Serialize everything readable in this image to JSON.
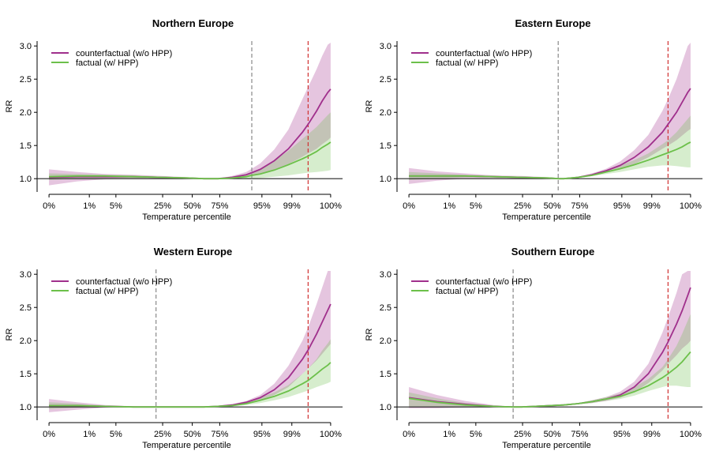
{
  "chart_data": [
    {
      "type": "line",
      "title": "Northern Europe",
      "xlabel": "Temperature percentile",
      "ylabel": "RR",
      "ylim": [
        0.8,
        3.05
      ],
      "yticks": [
        "1.0",
        "1.5",
        "2.0",
        "2.5",
        "3.0"
      ],
      "xticks": [
        "0%",
        "1%",
        "5%",
        "25%",
        "50%",
        "75%",
        "95%",
        "99%",
        "100%"
      ],
      "x": [
        0,
        10,
        20,
        30,
        40,
        50,
        55,
        60,
        65,
        70,
        72,
        75,
        80,
        85,
        90,
        92,
        95,
        97,
        99,
        100
      ],
      "series": [
        {
          "name": "counterfactual (w/o HPP)",
          "color": "#a0308c",
          "values": [
            1.02,
            1.03,
            1.03,
            1.03,
            1.02,
            1.01,
            1.0,
            1.0,
            1.02,
            1.06,
            1.09,
            1.14,
            1.27,
            1.45,
            1.7,
            1.82,
            2.02,
            2.17,
            2.3,
            2.35
          ],
          "lower": [
            0.9,
            0.96,
            0.99,
            1.0,
            1.0,
            1.0,
            1.0,
            1.0,
            1.0,
            1.03,
            1.04,
            1.07,
            1.14,
            1.22,
            1.33,
            1.38,
            1.45,
            1.52,
            1.58,
            1.62
          ],
          "upper": [
            1.14,
            1.1,
            1.07,
            1.06,
            1.04,
            1.02,
            1.0,
            1.0,
            1.04,
            1.1,
            1.15,
            1.23,
            1.44,
            1.74,
            2.2,
            2.38,
            2.65,
            2.85,
            3.02,
            3.05
          ]
        },
        {
          "name": "factual (w/ HPP)",
          "color": "#6cc04a",
          "values": [
            1.03,
            1.04,
            1.04,
            1.03,
            1.02,
            1.01,
            1.0,
            1.0,
            1.01,
            1.03,
            1.05,
            1.07,
            1.13,
            1.21,
            1.3,
            1.34,
            1.41,
            1.47,
            1.52,
            1.55
          ],
          "lower": [
            0.98,
            1.0,
            1.01,
            1.01,
            1.01,
            1.0,
            1.0,
            1.0,
            1.0,
            1.0,
            1.0,
            1.01,
            1.03,
            1.05,
            1.08,
            1.09,
            1.1,
            1.11,
            1.12,
            1.13
          ],
          "upper": [
            1.08,
            1.07,
            1.06,
            1.05,
            1.03,
            1.02,
            1.0,
            1.0,
            1.03,
            1.07,
            1.1,
            1.14,
            1.27,
            1.42,
            1.6,
            1.67,
            1.78,
            1.87,
            1.96,
            2.0
          ]
        }
      ],
      "vlines": [
        {
          "x": 72,
          "color": "#888888"
        },
        {
          "x": 92,
          "color": "#d03030"
        }
      ],
      "hline": 1.0,
      "legend": "top-left"
    },
    {
      "type": "line",
      "title": "Eastern Europe",
      "xlabel": "Temperature percentile",
      "ylabel": "RR",
      "ylim": [
        0.8,
        3.05
      ],
      "yticks": [
        "1.0",
        "1.5",
        "2.0",
        "2.5",
        "3.0"
      ],
      "xticks": [
        "0%",
        "1%",
        "5%",
        "25%",
        "50%",
        "75%",
        "95%",
        "99%",
        "100%"
      ],
      "x": [
        0,
        10,
        20,
        30,
        40,
        50,
        53,
        55,
        60,
        65,
        70,
        75,
        80,
        85,
        90,
        92,
        95,
        97,
        99,
        100
      ],
      "series": [
        {
          "name": "counterfactual (w/o HPP)",
          "color": "#a0308c",
          "values": [
            1.04,
            1.04,
            1.04,
            1.03,
            1.02,
            1.01,
            1.0,
            1.0,
            1.02,
            1.06,
            1.12,
            1.2,
            1.32,
            1.48,
            1.7,
            1.82,
            2.0,
            2.15,
            2.3,
            2.36
          ],
          "lower": [
            0.92,
            0.97,
            1.0,
            1.01,
            1.0,
            1.0,
            1.0,
            1.0,
            1.01,
            1.04,
            1.09,
            1.14,
            1.22,
            1.32,
            1.45,
            1.5,
            1.58,
            1.65,
            1.72,
            1.75
          ],
          "upper": [
            1.16,
            1.11,
            1.08,
            1.05,
            1.04,
            1.02,
            1.0,
            1.0,
            1.03,
            1.08,
            1.15,
            1.26,
            1.43,
            1.66,
            2.02,
            2.2,
            2.5,
            2.75,
            3.0,
            3.05
          ]
        },
        {
          "name": "factual (w/ HPP)",
          "color": "#6cc04a",
          "values": [
            1.04,
            1.04,
            1.04,
            1.03,
            1.02,
            1.01,
            1.0,
            1.0,
            1.02,
            1.05,
            1.1,
            1.15,
            1.21,
            1.28,
            1.36,
            1.39,
            1.44,
            1.48,
            1.53,
            1.55
          ],
          "lower": [
            0.98,
            1.0,
            1.02,
            1.02,
            1.01,
            1.0,
            1.0,
            1.0,
            1.01,
            1.04,
            1.07,
            1.1,
            1.14,
            1.18,
            1.2,
            1.2,
            1.19,
            1.18,
            1.17,
            1.17
          ],
          "upper": [
            1.1,
            1.08,
            1.06,
            1.04,
            1.03,
            1.02,
            1.0,
            1.0,
            1.03,
            1.06,
            1.12,
            1.2,
            1.28,
            1.38,
            1.52,
            1.58,
            1.7,
            1.8,
            1.9,
            1.95
          ]
        }
      ],
      "vlines": [
        {
          "x": 53,
          "color": "#888888"
        },
        {
          "x": 92,
          "color": "#d03030"
        }
      ],
      "hline": 1.0,
      "legend": "top-left"
    },
    {
      "type": "line",
      "title": "Western Europe",
      "xlabel": "Temperature percentile",
      "ylabel": "RR",
      "ylim": [
        0.8,
        3.05
      ],
      "yticks": [
        "1.0",
        "1.5",
        "2.0",
        "2.5",
        "3.0"
      ],
      "xticks": [
        "0%",
        "1%",
        "5%",
        "25%",
        "50%",
        "75%",
        "95%",
        "99%",
        "100%"
      ],
      "x": [
        0,
        10,
        20,
        30,
        38,
        45,
        55,
        60,
        65,
        70,
        75,
        80,
        85,
        90,
        92,
        95,
        97,
        99,
        100
      ],
      "series": [
        {
          "name": "counterfactual (w/o HPP)",
          "color": "#a0308c",
          "values": [
            1.02,
            1.02,
            1.01,
            1.0,
            1.0,
            1.0,
            1.0,
            1.01,
            1.03,
            1.07,
            1.14,
            1.26,
            1.44,
            1.72,
            1.86,
            2.1,
            2.28,
            2.46,
            2.55
          ],
          "lower": [
            0.92,
            0.96,
            0.99,
            1.0,
            1.0,
            1.0,
            1.0,
            1.0,
            1.02,
            1.05,
            1.1,
            1.18,
            1.3,
            1.5,
            1.58,
            1.7,
            1.8,
            1.9,
            1.95
          ],
          "upper": [
            1.12,
            1.07,
            1.03,
            1.01,
            1.0,
            1.0,
            1.0,
            1.02,
            1.04,
            1.09,
            1.18,
            1.35,
            1.62,
            2.0,
            2.2,
            2.55,
            2.8,
            3.05,
            3.05
          ]
        },
        {
          "name": "factual (w/ HPP)",
          "color": "#6cc04a",
          "values": [
            1.02,
            1.02,
            1.01,
            1.0,
            1.0,
            1.0,
            1.0,
            1.01,
            1.02,
            1.05,
            1.1,
            1.16,
            1.24,
            1.35,
            1.4,
            1.5,
            1.57,
            1.63,
            1.67
          ],
          "lower": [
            0.97,
            0.99,
            1.0,
            1.0,
            1.0,
            1.0,
            1.0,
            1.0,
            1.01,
            1.03,
            1.06,
            1.1,
            1.15,
            1.22,
            1.25,
            1.3,
            1.33,
            1.36,
            1.38
          ],
          "upper": [
            1.07,
            1.05,
            1.02,
            1.0,
            1.0,
            1.0,
            1.0,
            1.02,
            1.03,
            1.07,
            1.14,
            1.22,
            1.33,
            1.5,
            1.58,
            1.72,
            1.85,
            1.96,
            2.02
          ]
        }
      ],
      "vlines": [
        {
          "x": 38,
          "color": "#888888"
        },
        {
          "x": 92,
          "color": "#d03030"
        }
      ],
      "hline": 1.0,
      "legend": "top-left"
    },
    {
      "type": "line",
      "title": "Southern Europe",
      "xlabel": "Temperature percentile",
      "ylabel": "RR",
      "ylim": [
        0.8,
        3.05
      ],
      "yticks": [
        "1.0",
        "1.5",
        "2.0",
        "2.5",
        "3.0"
      ],
      "xticks": [
        "0%",
        "1%",
        "5%",
        "25%",
        "50%",
        "75%",
        "95%",
        "99%",
        "100%"
      ],
      "x": [
        0,
        10,
        20,
        30,
        37,
        40,
        45,
        55,
        60,
        65,
        70,
        75,
        80,
        85,
        90,
        92,
        95,
        97,
        99,
        100
      ],
      "series": [
        {
          "name": "counterfactual (w/o HPP)",
          "color": "#a0308c",
          "values": [
            1.14,
            1.08,
            1.04,
            1.01,
            1.0,
            1.0,
            1.01,
            1.03,
            1.05,
            1.08,
            1.12,
            1.18,
            1.3,
            1.5,
            1.82,
            1.98,
            2.25,
            2.45,
            2.68,
            2.8
          ],
          "lower": [
            0.98,
            0.98,
            0.99,
            1.0,
            1.0,
            1.0,
            1.0,
            1.02,
            1.04,
            1.06,
            1.09,
            1.14,
            1.22,
            1.36,
            1.55,
            1.65,
            1.78,
            1.88,
            1.95,
            2.0
          ],
          "upper": [
            1.3,
            1.18,
            1.09,
            1.03,
            1.0,
            1.0,
            1.02,
            1.04,
            1.06,
            1.1,
            1.15,
            1.23,
            1.38,
            1.65,
            2.12,
            2.35,
            2.72,
            3.0,
            3.05,
            3.05
          ]
        },
        {
          "name": "factual (w/ HPP)",
          "color": "#6cc04a",
          "values": [
            1.13,
            1.07,
            1.03,
            1.01,
            1.0,
            1.0,
            1.01,
            1.03,
            1.05,
            1.08,
            1.12,
            1.16,
            1.23,
            1.32,
            1.44,
            1.5,
            1.6,
            1.68,
            1.78,
            1.83
          ],
          "lower": [
            1.0,
            1.0,
            1.0,
            1.0,
            1.0,
            1.0,
            1.0,
            1.02,
            1.04,
            1.06,
            1.09,
            1.12,
            1.17,
            1.24,
            1.3,
            1.32,
            1.32,
            1.31,
            1.3,
            1.3
          ],
          "upper": [
            1.22,
            1.13,
            1.06,
            1.02,
            1.0,
            1.0,
            1.02,
            1.04,
            1.06,
            1.1,
            1.15,
            1.2,
            1.3,
            1.42,
            1.6,
            1.72,
            1.92,
            2.1,
            2.3,
            2.4
          ]
        }
      ],
      "vlines": [
        {
          "x": 37,
          "color": "#888888"
        },
        {
          "x": 92,
          "color": "#d03030"
        }
      ],
      "hline": 1.0,
      "legend": "top-left"
    }
  ]
}
